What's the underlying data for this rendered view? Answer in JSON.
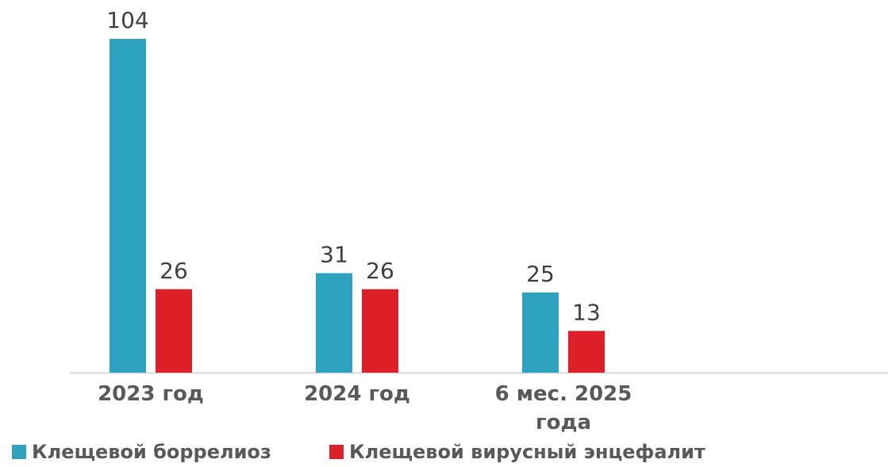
{
  "chart_data": {
    "type": "bar",
    "categories": [
      "2023 год",
      "2024 год",
      "6 мес. 2025 года",
      null
    ],
    "series": [
      {
        "name": "Клещевой боррелиоз",
        "color": "#2ea3bf",
        "values": [
          104,
          31,
          25,
          null
        ]
      },
      {
        "name": "Клещевой вирусный энцефалит",
        "color": "#dc1f28",
        "values": [
          26,
          26,
          13,
          null
        ]
      }
    ],
    "ylim": [
      0,
      104
    ]
  }
}
